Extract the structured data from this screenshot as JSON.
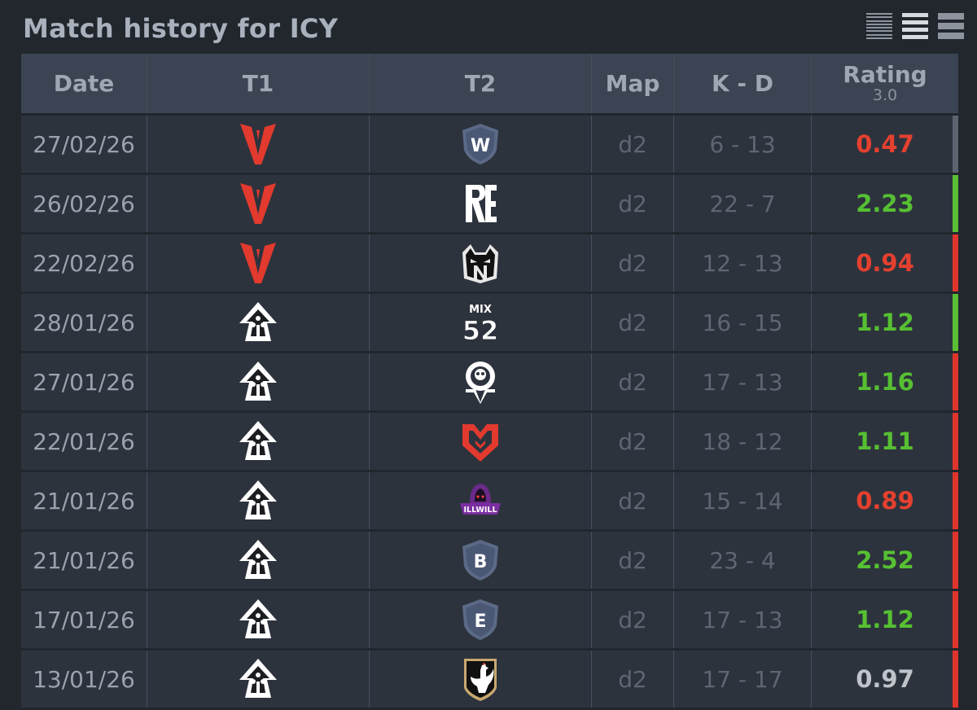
{
  "page": {
    "title": "Match history for ICY"
  },
  "view_options": [
    "compact-view-icon",
    "normal-view-icon",
    "large-view-icon"
  ],
  "columns": {
    "date": "Date",
    "t1": "T1",
    "t2": "T2",
    "map": "Map",
    "kd": "K - D",
    "rating": "Rating",
    "rating_version": "3.0"
  },
  "colors": {
    "win": "#5bbf35",
    "loss": "#e0352d",
    "rating_good": "#56c032",
    "rating_bad": "#e5402f"
  },
  "matches": [
    {
      "date": "27/02/26",
      "t1_logo": "v-team-logo",
      "t2_logo": "w-shield-logo",
      "t2_text": "W",
      "map": "d2",
      "kd": "6 - 13",
      "rating": "0.47",
      "rating_color": "red",
      "result": "grey"
    },
    {
      "date": "26/02/26",
      "t1_logo": "v-team-logo",
      "t2_logo": "re-team-logo",
      "t2_text": "RE",
      "map": "d2",
      "kd": "22 - 7",
      "rating": "2.23",
      "rating_color": "green",
      "result": "green"
    },
    {
      "date": "22/02/26",
      "t1_logo": "v-team-logo",
      "t2_logo": "n-cat-logo",
      "t2_text": "N",
      "map": "d2",
      "kd": "12 - 13",
      "rating": "0.94",
      "rating_color": "red",
      "result": "red"
    },
    {
      "date": "28/01/26",
      "t1_logo": "spade-team-logo",
      "t2_logo": "mix52-logo",
      "t2_text": "MIX",
      "t2_text2": "52",
      "map": "d2",
      "kd": "16 - 15",
      "rating": "1.12",
      "rating_color": "green",
      "result": "green"
    },
    {
      "date": "27/01/26",
      "t1_logo": "spade-team-logo",
      "t2_logo": "omega-skull-logo",
      "map": "d2",
      "kd": "17 - 13",
      "rating": "1.16",
      "rating_color": "green",
      "result": "red"
    },
    {
      "date": "22/01/26",
      "t1_logo": "spade-team-logo",
      "t2_logo": "mouz-logo",
      "map": "d2",
      "kd": "18 - 12",
      "rating": "1.11",
      "rating_color": "green",
      "result": "red"
    },
    {
      "date": "21/01/26",
      "t1_logo": "spade-team-logo",
      "t2_logo": "illwill-logo",
      "t2_text": "ILLWILL",
      "map": "d2",
      "kd": "15 - 14",
      "rating": "0.89",
      "rating_color": "red",
      "result": "red"
    },
    {
      "date": "21/01/26",
      "t1_logo": "spade-team-logo",
      "t2_logo": "b-shield-logo",
      "t2_text": "B",
      "map": "d2",
      "kd": "23 - 4",
      "rating": "2.52",
      "rating_color": "green",
      "result": "red"
    },
    {
      "date": "17/01/26",
      "t1_logo": "spade-team-logo",
      "t2_logo": "e-shield-logo",
      "t2_text": "E",
      "map": "d2",
      "kd": "17 - 13",
      "rating": "1.12",
      "rating_color": "green",
      "result": "red"
    },
    {
      "date": "13/01/26",
      "t1_logo": "spade-team-logo",
      "t2_logo": "rooster-logo",
      "map": "d2",
      "kd": "17 - 17",
      "rating": "0.97",
      "rating_color": "grey",
      "result": "red"
    }
  ]
}
